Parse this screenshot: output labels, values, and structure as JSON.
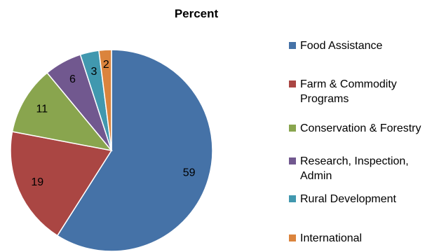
{
  "chart_data": {
    "type": "pie",
    "title": "Percent",
    "start_angle_deg": 0,
    "direction": "clockwise",
    "legend_position": "right",
    "slices": [
      {
        "label": "Food Assistance",
        "value": 59,
        "color": "#4572A7"
      },
      {
        "label": "Farm & Commodity Programs",
        "value": 19,
        "color": "#AA4643"
      },
      {
        "label": "Conservation & Forestry",
        "value": 11,
        "color": "#89A54E"
      },
      {
        "label": "Research, Inspection, Admin",
        "value": 6,
        "color": "#71588F"
      },
      {
        "label": "Rural Development",
        "value": 3,
        "color": "#4198AF"
      },
      {
        "label": "International",
        "value": 2,
        "color": "#DB843D"
      }
    ]
  },
  "legend_lines": [
    [
      "Food Assistance"
    ],
    [
      "Farm & Commodity",
      "Programs"
    ],
    [
      "Conservation & Forestry"
    ],
    [
      "Research, Inspection,",
      "Admin"
    ],
    [
      "Rural Development"
    ],
    [
      "International"
    ]
  ]
}
